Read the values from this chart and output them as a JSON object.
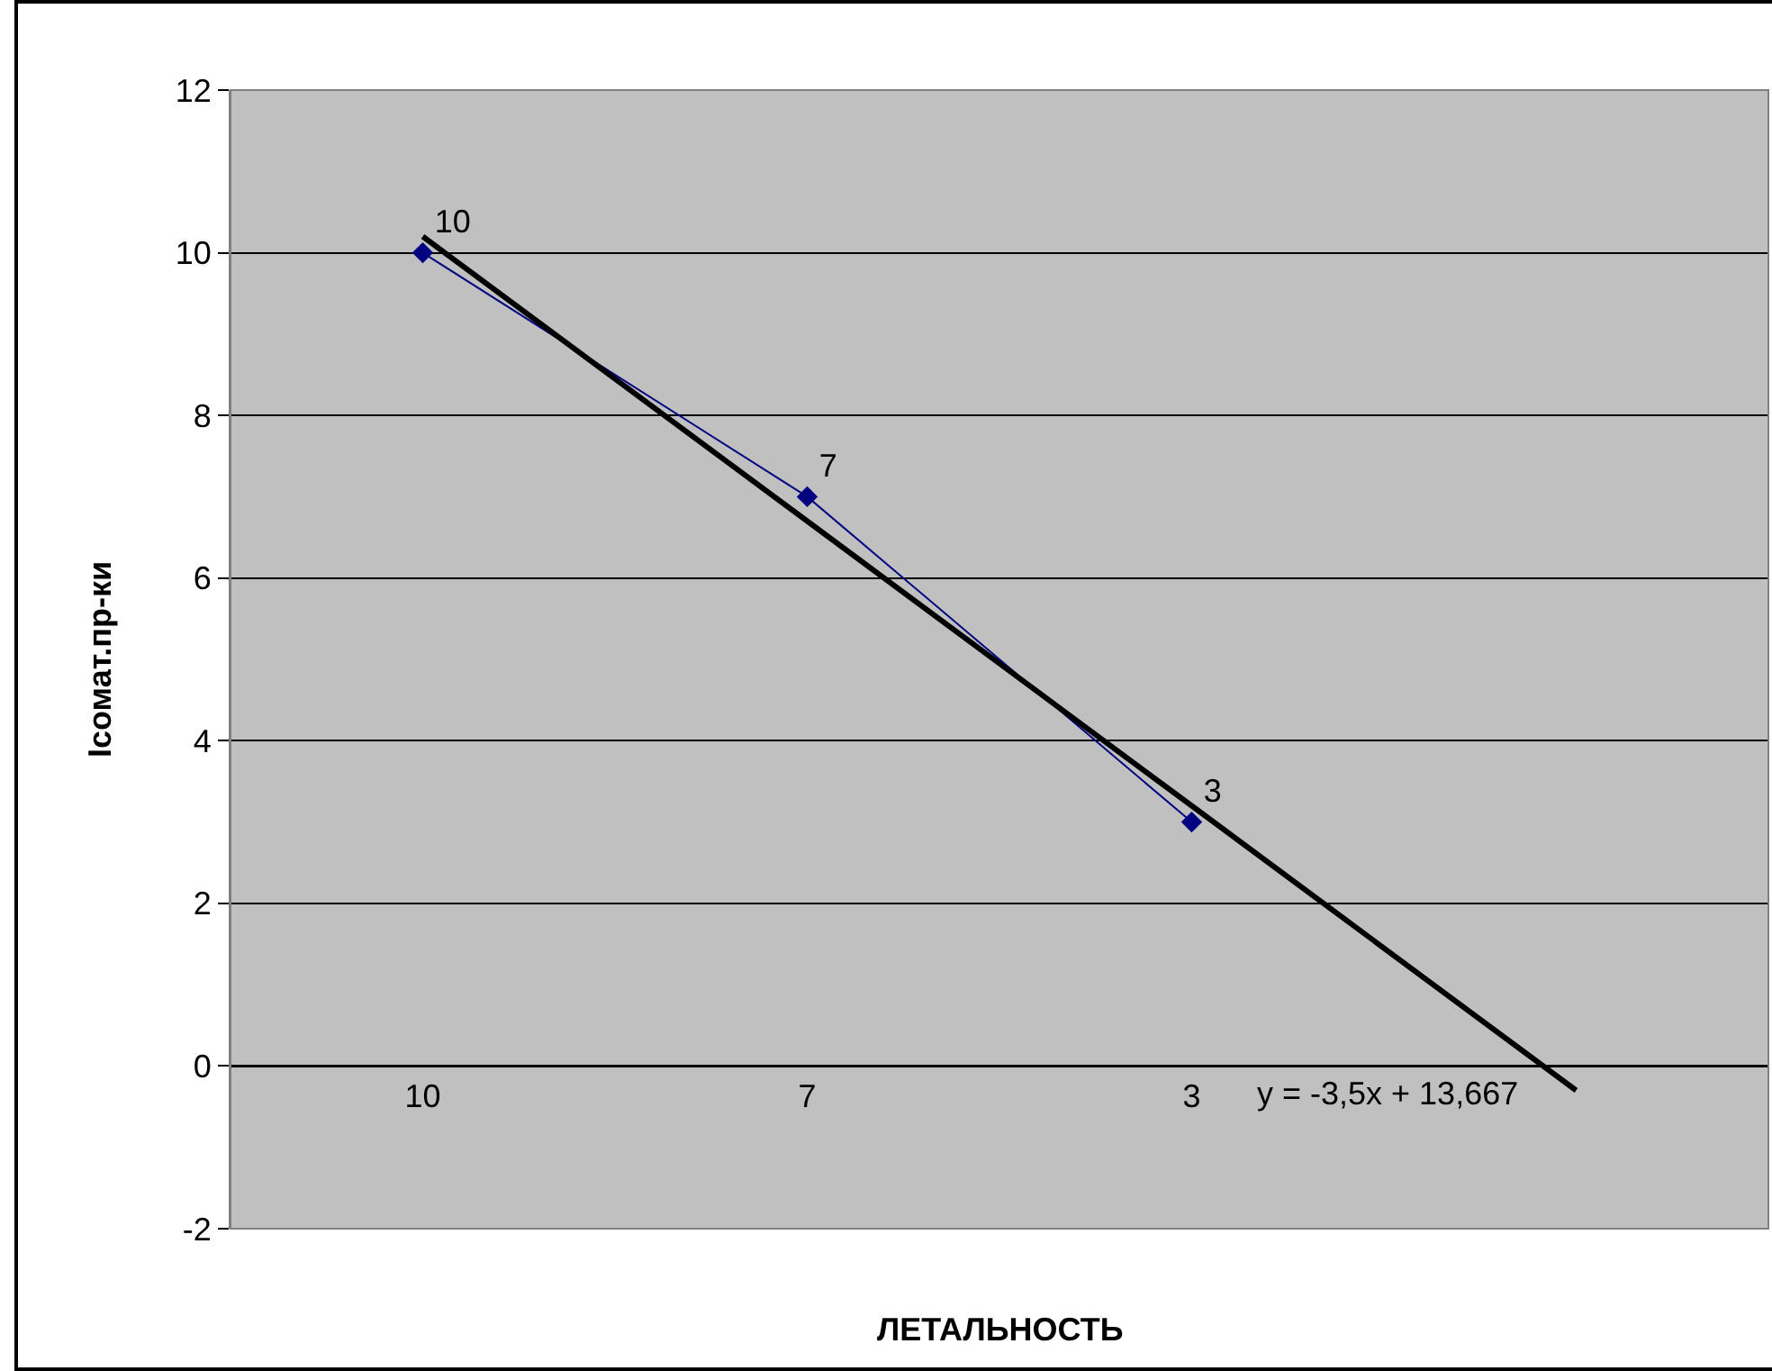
{
  "chart_data": {
    "type": "line",
    "xlabel": "ЛЕТАЛЬНОСТЬ",
    "ylabel": "Iсомат.пр-ки",
    "categories": [
      "10",
      "7",
      "3",
      null
    ],
    "marker": "diamond",
    "series": [
      {
        "color": "#000080",
        "values": [
          10,
          7,
          3,
          null
        ],
        "value_labels": [
          "10",
          "7",
          "3",
          null
        ]
      },
      {
        "type": "line",
        "color": "#000000",
        "values": [
          10.2,
          6.7,
          3.2,
          -0.3
        ],
        "marker": "none"
      }
    ],
    "ylim": [
      -2,
      12
    ],
    "yticks": [
      -2,
      0,
      2,
      4,
      6,
      8,
      10,
      12
    ],
    "grid": "y",
    "annotations": [
      "y = -3,5x + 13,667"
    ]
  }
}
